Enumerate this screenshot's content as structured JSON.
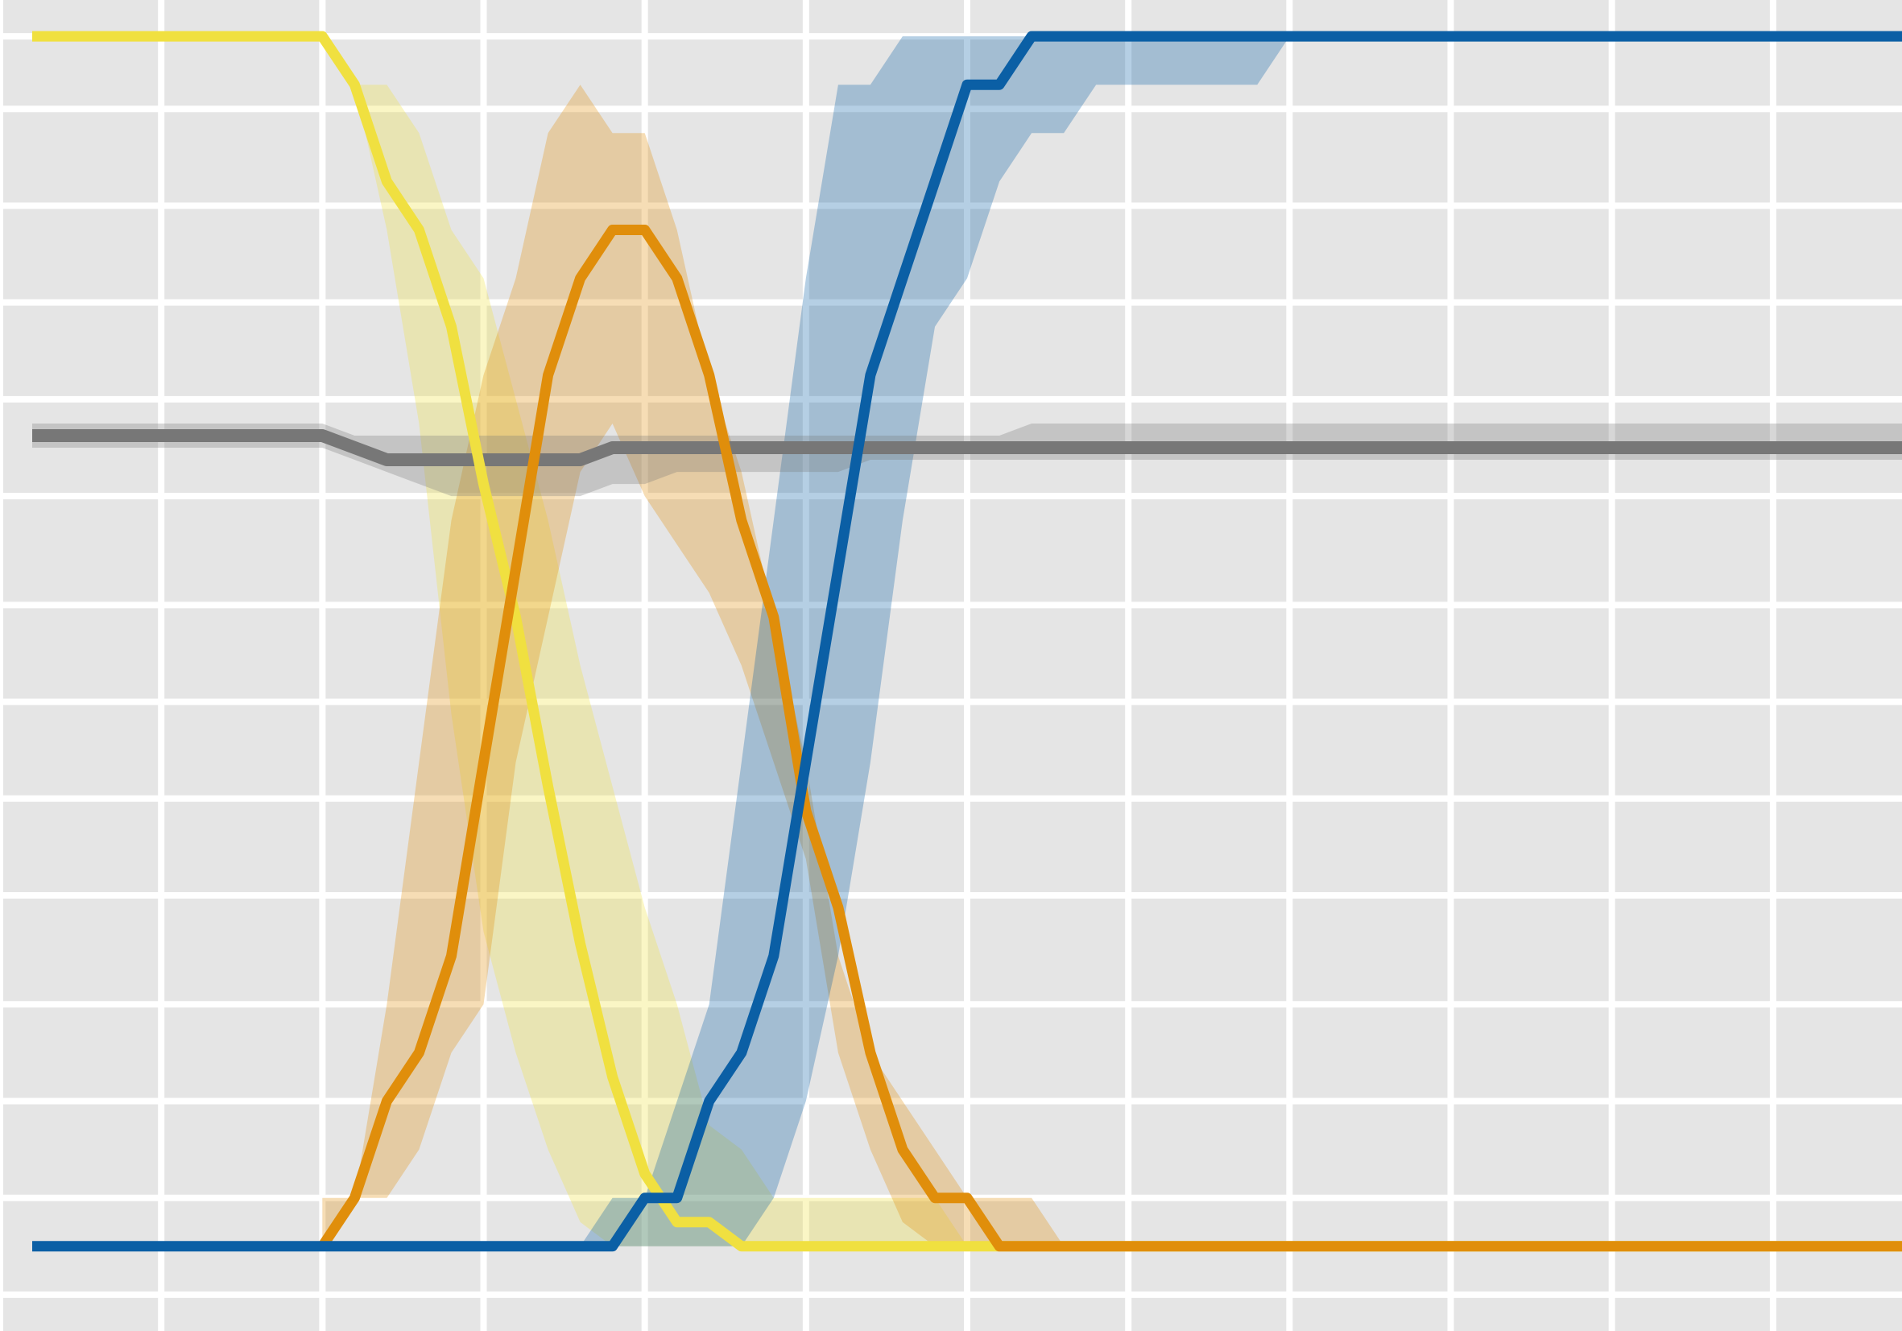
{
  "chart_data": {
    "type": "line",
    "title": "",
    "xlabel": "",
    "ylabel": "",
    "xlim": [
      0,
      118
    ],
    "ylim": [
      -0.07,
      1.03
    ],
    "grid": true,
    "legend": "none",
    "x_gridlines": [
      0,
      10,
      20,
      30,
      40,
      50,
      60,
      70,
      80,
      90,
      100,
      110
    ],
    "y_gridlines": [
      -0.04,
      0.04,
      0.12,
      0.2,
      0.29,
      0.37,
      0.45,
      0.53,
      0.62,
      0.7,
      0.78,
      0.86,
      0.94,
      1.0
    ],
    "colors": {
      "background": "#e5e5e5",
      "grid": "#ffffff",
      "yellow": "#f0e040",
      "orange": "#e08e0b",
      "blue": "#0b5fa5",
      "gray": "#777777"
    },
    "series": [
      {
        "color": "#f0e040",
        "x": [
          2,
          20,
          22,
          24,
          26,
          28,
          30,
          32,
          34,
          36,
          38,
          40,
          42,
          44,
          46,
          48,
          50,
          52,
          54,
          56,
          58,
          60,
          62,
          64,
          66,
          123
        ],
        "y": [
          1.0,
          1.0,
          0.96,
          0.88,
          0.84,
          0.76,
          0.63,
          0.52,
          0.38,
          0.25,
          0.14,
          0.06,
          0.02,
          0.02,
          0.0,
          0.0,
          0.0,
          0.0,
          0.0,
          0.0,
          0.0,
          0.0,
          0.0,
          0.0,
          0.0,
          0.0
        ],
        "band_upper": [
          1.0,
          1.0,
          0.96,
          0.96,
          0.92,
          0.84,
          0.8,
          0.7,
          0.6,
          0.48,
          0.38,
          0.28,
          0.2,
          0.1,
          0.08,
          0.04,
          0.04,
          0.04,
          0.04,
          0.04,
          0.04,
          0.0,
          0.0,
          0.0,
          0.0,
          0.0
        ],
        "band_lower": [
          1.0,
          1.0,
          0.96,
          0.84,
          0.68,
          0.44,
          0.26,
          0.16,
          0.08,
          0.02,
          0.0,
          0.0,
          0.0,
          0.0,
          0.0,
          0.0,
          0.0,
          0.0,
          0.0,
          0.0,
          0.0,
          0.0,
          0.0,
          0.0,
          0.0,
          0.0
        ]
      },
      {
        "color": "#e08e0b",
        "x": [
          20,
          22,
          24,
          26,
          28,
          30,
          32,
          34,
          36,
          38,
          40,
          42,
          44,
          46,
          48,
          50,
          52,
          54,
          56,
          58,
          60,
          62,
          64,
          66,
          123
        ],
        "y": [
          0.0,
          0.04,
          0.12,
          0.16,
          0.24,
          0.4,
          0.56,
          0.72,
          0.8,
          0.84,
          0.84,
          0.8,
          0.72,
          0.6,
          0.52,
          0.36,
          0.28,
          0.16,
          0.08,
          0.04,
          0.04,
          0.0,
          0.0,
          0.0,
          0.0
        ],
        "band_upper": [
          0.04,
          0.04,
          0.2,
          0.4,
          0.6,
          0.72,
          0.8,
          0.92,
          0.96,
          0.92,
          0.92,
          0.84,
          0.72,
          0.64,
          0.52,
          0.4,
          0.24,
          0.16,
          0.12,
          0.08,
          0.04,
          0.04,
          0.04,
          0.0,
          0.0
        ],
        "band_lower": [
          0.0,
          0.04,
          0.04,
          0.08,
          0.16,
          0.2,
          0.4,
          0.52,
          0.64,
          0.68,
          0.62,
          0.58,
          0.54,
          0.48,
          0.4,
          0.32,
          0.16,
          0.08,
          0.02,
          0.0,
          0.0,
          0.0,
          0.0,
          0.0,
          0.0
        ]
      },
      {
        "color": "#0b5fa5",
        "x": [
          2,
          20,
          22,
          24,
          26,
          28,
          30,
          32,
          34,
          36,
          38,
          40,
          42,
          44,
          46,
          48,
          50,
          52,
          54,
          56,
          58,
          60,
          62,
          64,
          66,
          68,
          70,
          72,
          74,
          76,
          78,
          80,
          82,
          123
        ],
        "y": [
          0.0,
          0.0,
          0.0,
          0.0,
          0.0,
          0.0,
          0.0,
          0.0,
          0.0,
          0.0,
          0.0,
          0.04,
          0.04,
          0.12,
          0.16,
          0.24,
          0.4,
          0.56,
          0.72,
          0.8,
          0.88,
          0.96,
          0.96,
          1.0,
          1.0,
          1.0,
          1.0,
          1.0,
          1.0,
          1.0,
          1.0,
          1.0,
          1.0,
          1.0
        ],
        "band_upper": [
          0.0,
          0.0,
          0.0,
          0.0,
          0.0,
          0.0,
          0.0,
          0.0,
          0.0,
          0.0,
          0.04,
          0.04,
          0.12,
          0.2,
          0.4,
          0.6,
          0.8,
          0.96,
          0.96,
          1.0,
          1.0,
          1.0,
          1.0,
          1.0,
          1.0,
          1.0,
          1.0,
          1.0,
          1.0,
          1.0,
          1.0,
          1.0,
          1.0,
          1.0
        ],
        "band_lower": [
          0.0,
          0.0,
          0.0,
          0.0,
          0.0,
          0.0,
          0.0,
          0.0,
          0.0,
          0.0,
          0.0,
          0.0,
          0.0,
          0.0,
          0.0,
          0.04,
          0.12,
          0.24,
          0.4,
          0.6,
          0.76,
          0.8,
          0.88,
          0.92,
          0.92,
          0.96,
          0.96,
          0.96,
          0.96,
          0.96,
          0.96,
          1.0,
          1.0,
          1.0
        ]
      },
      {
        "color": "#777777",
        "x": [
          2,
          20,
          22,
          24,
          26,
          28,
          30,
          32,
          34,
          36,
          38,
          40,
          42,
          44,
          46,
          48,
          50,
          52,
          54,
          56,
          58,
          60,
          62,
          64,
          66,
          68,
          70,
          72,
          74,
          76,
          78,
          80,
          82,
          123
        ],
        "y": [
          0.67,
          0.67,
          0.66,
          0.65,
          0.65,
          0.65,
          0.65,
          0.65,
          0.65,
          0.65,
          0.66,
          0.66,
          0.66,
          0.66,
          0.66,
          0.66,
          0.66,
          0.66,
          0.66,
          0.66,
          0.66,
          0.66,
          0.66,
          0.66,
          0.66,
          0.66,
          0.66,
          0.66,
          0.66,
          0.66,
          0.66,
          0.66,
          0.66,
          0.66
        ],
        "band_upper": [
          0.68,
          0.68,
          0.67,
          0.67,
          0.67,
          0.67,
          0.67,
          0.67,
          0.67,
          0.67,
          0.67,
          0.67,
          0.67,
          0.67,
          0.67,
          0.67,
          0.67,
          0.67,
          0.67,
          0.67,
          0.67,
          0.67,
          0.67,
          0.68,
          0.68,
          0.68,
          0.68,
          0.68,
          0.68,
          0.68,
          0.68,
          0.68,
          0.68,
          0.68
        ],
        "band_lower": [
          0.66,
          0.66,
          0.65,
          0.64,
          0.63,
          0.62,
          0.62,
          0.62,
          0.62,
          0.62,
          0.63,
          0.63,
          0.64,
          0.64,
          0.64,
          0.64,
          0.64,
          0.64,
          0.65,
          0.65,
          0.65,
          0.65,
          0.65,
          0.65,
          0.65,
          0.65,
          0.65,
          0.65,
          0.65,
          0.65,
          0.65,
          0.65,
          0.65,
          0.65
        ]
      }
    ]
  }
}
